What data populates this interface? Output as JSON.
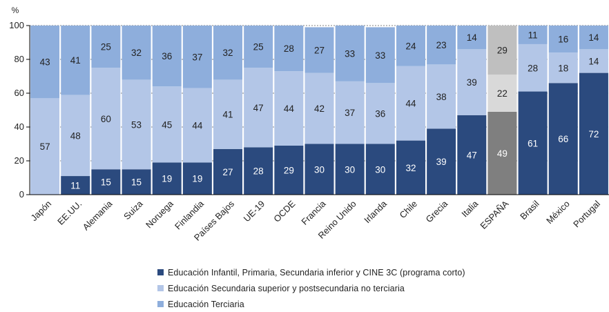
{
  "chart_data": {
    "type": "bar",
    "stacked": true,
    "ylabel": "%",
    "ylim": [
      0,
      100
    ],
    "yticks": [
      0,
      20,
      40,
      60,
      80,
      100
    ],
    "grid": true,
    "legend_position": "bottom",
    "categories": [
      "Japón",
      "EE.UU.",
      "Alemania",
      "Suiza",
      "Noruega",
      "Finlandia",
      "Países Bajos",
      "UE-19",
      "OCDE",
      "Francia",
      "Reino Unido",
      "Irlanda",
      "Chile",
      "Grecia",
      "Italia",
      "ESPAÑA",
      "Brasil",
      "México",
      "Portugal"
    ],
    "highlight_category": "ESPAÑA",
    "series": [
      {
        "name": "Educación Infantil, Primaria, Secundaria inferior y CINE 3C (programa corto)",
        "color": "#2b4a7e",
        "highlight_color": "#7f7f7f",
        "values": [
          0,
          11,
          15,
          15,
          19,
          19,
          27,
          28,
          29,
          30,
          30,
          30,
          32,
          39,
          47,
          49,
          61,
          66,
          72
        ],
        "labels": [
          "",
          "11",
          "15",
          "15",
          "19",
          "19",
          "27",
          "28",
          "29",
          "30",
          "30",
          "30",
          "32",
          "39",
          "47",
          "49",
          "61",
          "66",
          "72"
        ]
      },
      {
        "name": "Educación Secundaria superior y postsecundaria no terciaria",
        "color": "#b3c6e7",
        "highlight_color": "#d9d9d9",
        "values": [
          57,
          48,
          60,
          53,
          45,
          44,
          41,
          47,
          44,
          42,
          37,
          36,
          44,
          38,
          39,
          22,
          28,
          18,
          14
        ],
        "labels": [
          "57",
          "48",
          "60",
          "53",
          "45",
          "44",
          "41",
          "47",
          "44",
          "42",
          "37",
          "36",
          "44",
          "38",
          "39",
          "22",
          "28",
          "18",
          "14"
        ]
      },
      {
        "name": "Educación Terciaria",
        "color": "#8eaedc",
        "highlight_color": "#bfbfbf",
        "values": [
          43,
          41,
          25,
          32,
          36,
          37,
          32,
          25,
          28,
          27,
          33,
          33,
          24,
          23,
          14,
          29,
          11,
          16,
          14
        ],
        "labels": [
          "43",
          "41",
          "25",
          "32",
          "36",
          "37",
          "32",
          "25",
          "28",
          "27",
          "33",
          "33",
          "24",
          "23",
          "14",
          "29",
          "11",
          "16",
          "14"
        ]
      }
    ]
  }
}
